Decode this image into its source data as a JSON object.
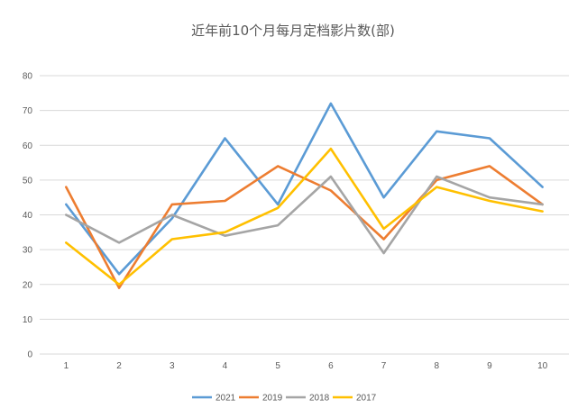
{
  "chart_data": {
    "type": "line",
    "title": "近年前10个月每月定档影片数(部)",
    "xlabel": "",
    "ylabel": "",
    "categories": [
      "1",
      "2",
      "3",
      "4",
      "5",
      "6",
      "7",
      "8",
      "9",
      "10"
    ],
    "ylim": [
      0,
      80
    ],
    "y_ticks": [
      "0",
      "10",
      "20",
      "30",
      "40",
      "50",
      "60",
      "70",
      "80"
    ],
    "grid": true,
    "legend_position": "bottom",
    "series": [
      {
        "name": "2021",
        "color": "#5b9bd5",
        "values": [
          43,
          23,
          39,
          62,
          43,
          72,
          45,
          64,
          62,
          48
        ]
      },
      {
        "name": "2019",
        "color": "#ed7d31",
        "values": [
          48,
          19,
          43,
          44,
          54,
          47,
          33,
          50,
          54,
          43
        ]
      },
      {
        "name": "2018",
        "color": "#a5a5a5",
        "values": [
          40,
          32,
          40,
          34,
          37,
          51,
          29,
          51,
          45,
          43
        ]
      },
      {
        "name": "2017",
        "color": "#ffc000",
        "values": [
          32,
          20,
          33,
          35,
          42,
          59,
          36,
          48,
          44,
          41
        ]
      }
    ]
  }
}
